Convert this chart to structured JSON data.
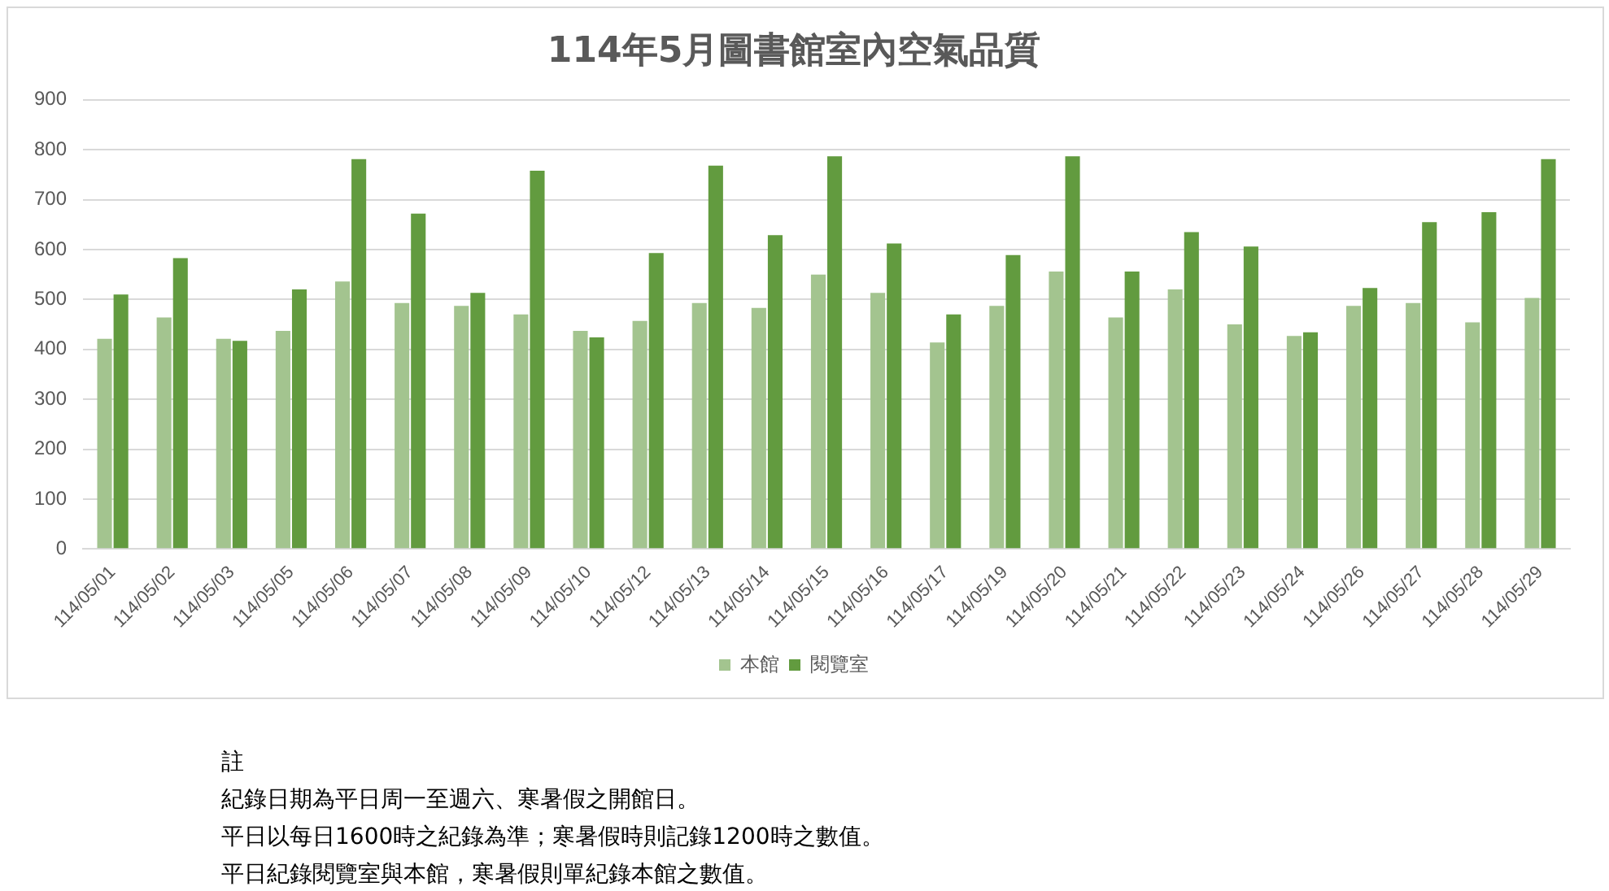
{
  "chart_data": {
    "type": "bar",
    "title": "114年5月圖書館室內空氣品質",
    "categories": [
      "114/05/01",
      "114/05/02",
      "114/05/03",
      "114/05/05",
      "114/05/06",
      "114/05/07",
      "114/05/08",
      "114/05/09",
      "114/05/10",
      "114/05/12",
      "114/05/13",
      "114/05/14",
      "114/05/15",
      "114/05/16",
      "114/05/17",
      "114/05/19",
      "114/05/20",
      "114/05/21",
      "114/05/22",
      "114/05/23",
      "114/05/24",
      "114/05/26",
      "114/05/27",
      "114/05/28",
      "114/05/29"
    ],
    "series": [
      {
        "name": "本館",
        "color": "#a3c48f",
        "values": [
          421,
          464,
          421,
          437,
          536,
          493,
          487,
          470,
          437,
          457,
          493,
          483,
          550,
          513,
          414,
          487,
          556,
          464,
          520,
          450,
          427,
          487,
          493,
          454,
          503
        ]
      },
      {
        "name": "閱覽室",
        "color": "#629b3f",
        "values": [
          510,
          583,
          417,
          520,
          781,
          672,
          513,
          758,
          424,
          593,
          768,
          629,
          787,
          612,
          470,
          589,
          787,
          556,
          635,
          606,
          434,
          523,
          655,
          675,
          781
        ]
      }
    ],
    "ylim": [
      0,
      900
    ],
    "yticks": [
      0,
      100,
      200,
      300,
      400,
      500,
      600,
      700,
      800,
      900
    ],
    "grid": "y",
    "legend": "bottom",
    "annotations": [
      "註",
      "紀錄日期為平日周一至週六、寒暑假之開館日。",
      "平日以每日1600時之紀錄為準；寒暑假時則記錄1200時之數值。",
      "平日紀錄閱覽室與本館，寒暑假則單紀錄本館之數值。"
    ]
  }
}
